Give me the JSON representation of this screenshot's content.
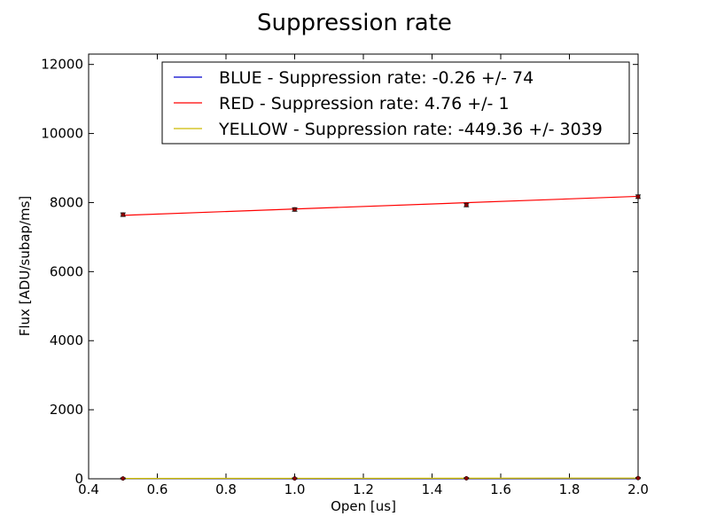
{
  "chart_data": {
    "type": "line",
    "title": "Suppression rate",
    "xlabel": "Open [us]",
    "ylabel": "Flux [ADU/subap/ms]",
    "xlim": [
      0.4,
      2.0
    ],
    "ylim": [
      0,
      12300
    ],
    "xticks": [
      "0.4",
      "0.6",
      "0.8",
      "1.0",
      "1.2",
      "1.4",
      "1.6",
      "1.8",
      "2.0"
    ],
    "yticks": [
      "0",
      "2000",
      "4000",
      "6000",
      "8000",
      "10000",
      "12000"
    ],
    "grid": false,
    "legend_position": "top-right",
    "series": [
      {
        "name": "BLUE - Suppression rate: -0.26 +/- 74",
        "color": "#0000cc",
        "fit_x": [
          0.5,
          2.0
        ],
        "fit_y": [
          10,
          10
        ],
        "points": []
      },
      {
        "name": "RED - Suppression rate: 4.76 +/- 1",
        "color": "#ff0000",
        "fit_x": [
          0.5,
          2.0
        ],
        "fit_y": [
          7630,
          8180
        ],
        "points": [
          {
            "x": 0.5,
            "y": 7650,
            "err": 50
          },
          {
            "x": 1.0,
            "y": 7800,
            "err": 50
          },
          {
            "x": 1.5,
            "y": 7930,
            "err": 50
          },
          {
            "x": 2.0,
            "y": 8170,
            "err": 50
          }
        ]
      },
      {
        "name": "YELLOW - Suppression rate: -449.36 +/- 3039",
        "color": "#ccbb00",
        "fit_x": [
          0.5,
          2.0
        ],
        "fit_y": [
          10,
          20
        ],
        "points": [
          {
            "x": 0.5,
            "y": 10,
            "err": 15
          },
          {
            "x": 1.0,
            "y": 10,
            "err": 15
          },
          {
            "x": 1.5,
            "y": 15,
            "err": 15
          },
          {
            "x": 2.0,
            "y": 20,
            "err": 15
          }
        ]
      }
    ]
  }
}
